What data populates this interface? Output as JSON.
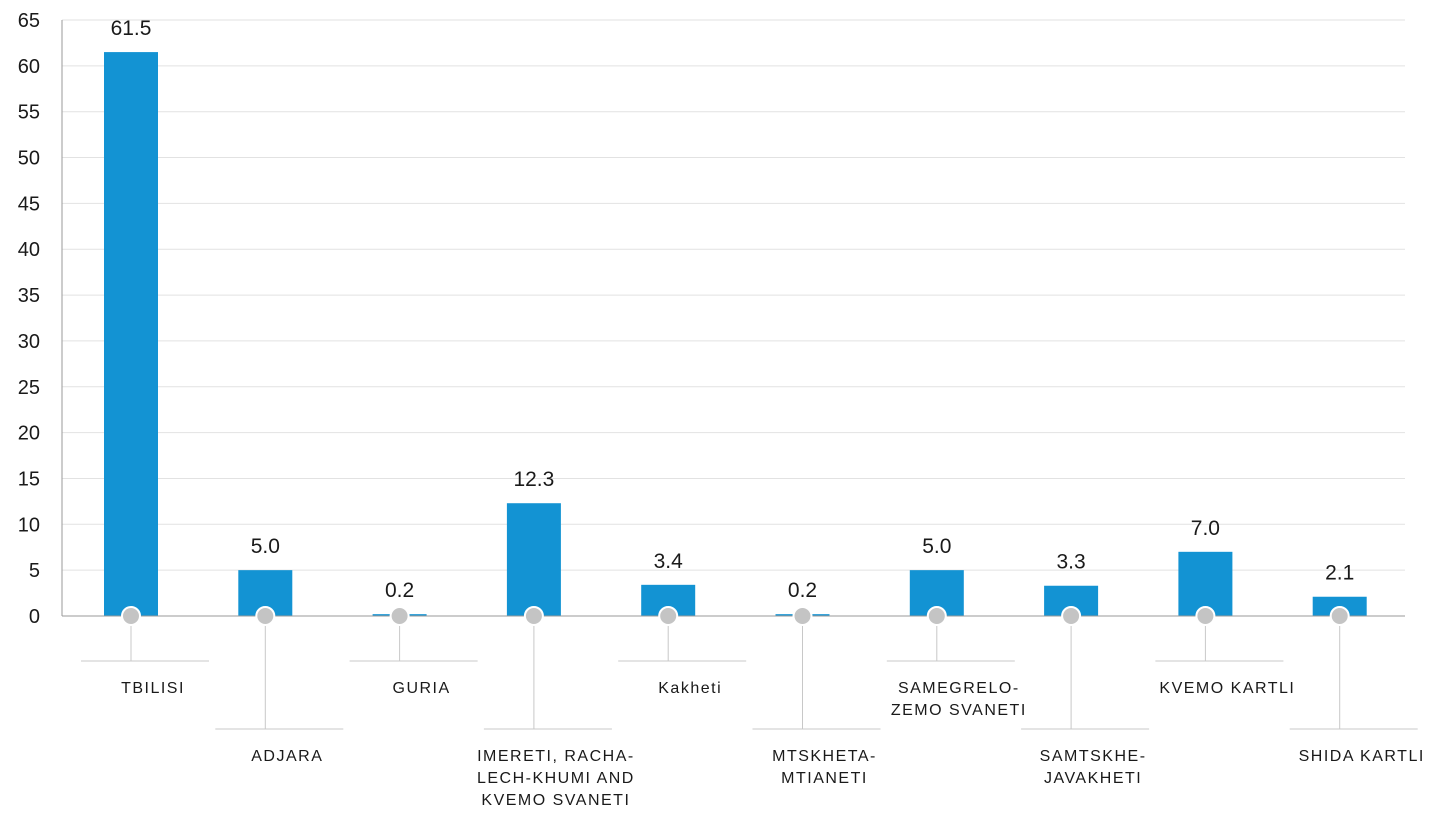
{
  "chart_data": {
    "type": "bar",
    "categories": [
      [
        "TBILISI"
      ],
      [
        "ADJARA"
      ],
      [
        "GURIA"
      ],
      [
        "IMERETI, RACHA-",
        "LECH-KHUMI AND",
        "KVEMO SVANETI"
      ],
      [
        "Kakheti"
      ],
      [
        "MTSKHETA-",
        "MTIANETI"
      ],
      [
        "SAMEGRELO-",
        "ZEMO SVANETI"
      ],
      [
        "SAMTSKHE-",
        "JAVAKHETI"
      ],
      [
        "KVEMO KARTLI"
      ],
      [
        "SHIDA KARTLI"
      ]
    ],
    "values": [
      61.5,
      5.0,
      0.2,
      12.3,
      3.4,
      0.2,
      5.0,
      3.3,
      7.0,
      2.1
    ],
    "value_labels": [
      "61.5",
      "5.0",
      "0.2",
      "12.3",
      "3.4",
      "0.2",
      "5.0",
      "3.3",
      "7.0",
      "2.1"
    ],
    "ylim": [
      0,
      65
    ],
    "yticks": [
      0,
      5,
      10,
      15,
      20,
      25,
      30,
      35,
      40,
      45,
      50,
      55,
      60,
      65
    ],
    "grid": true,
    "title": "",
    "xlabel": "",
    "ylabel": "",
    "colors": {
      "bar": "#1393d3",
      "grid": "#e2e2e2",
      "dot": "#c4c4c4"
    }
  }
}
